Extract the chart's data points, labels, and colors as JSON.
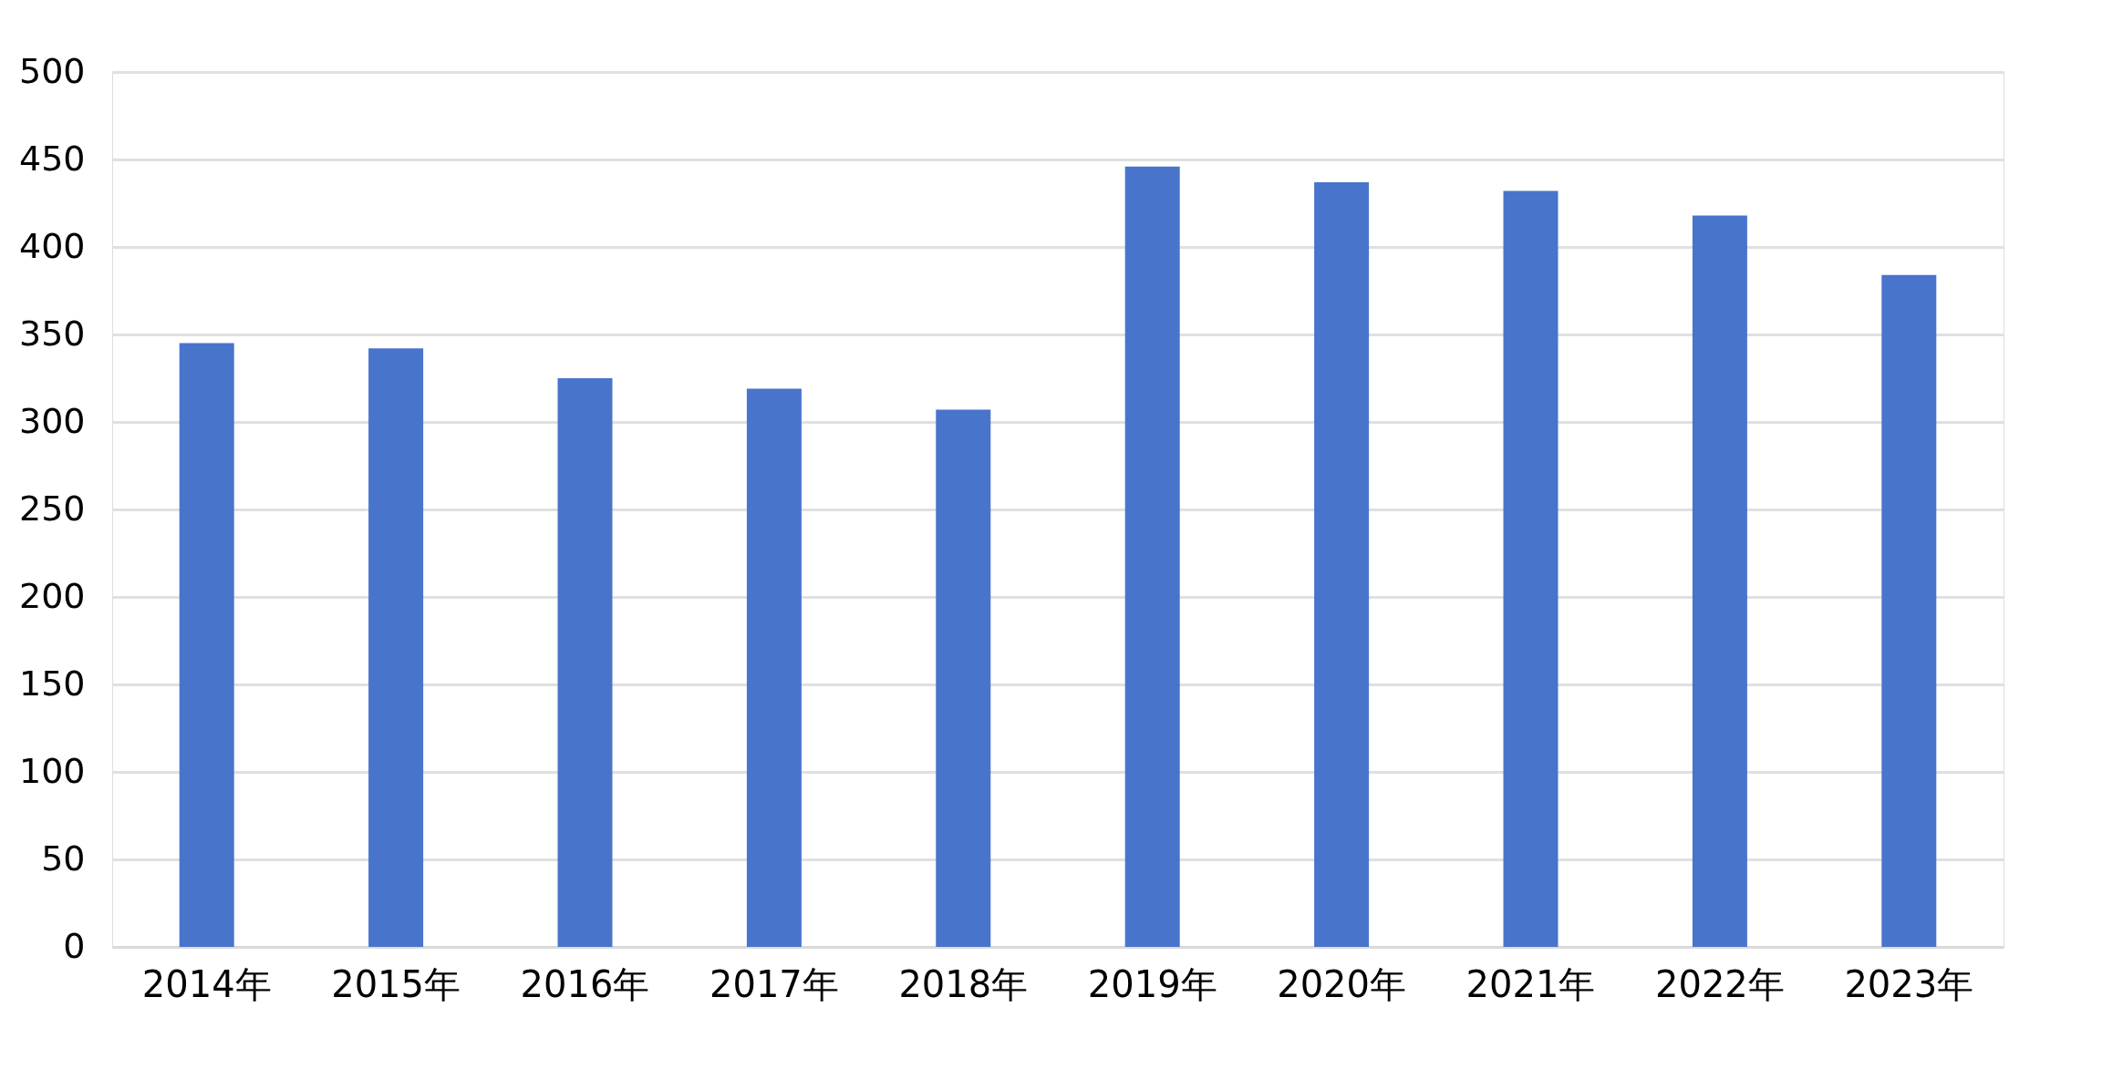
{
  "chart_data": {
    "type": "bar",
    "categories": [
      "2014年",
      "2015年",
      "2016年",
      "2017年",
      "2018年",
      "2019年",
      "2020年",
      "2021年",
      "2022年",
      "2023年"
    ],
    "values": [
      345,
      342,
      325,
      319,
      307,
      446,
      437,
      432,
      418,
      384
    ],
    "color": "#4874cb",
    "ylim": [
      0,
      500
    ],
    "yticks": [
      0,
      50,
      100,
      150,
      200,
      250,
      300,
      350,
      400,
      450,
      500
    ],
    "grid": "y"
  }
}
